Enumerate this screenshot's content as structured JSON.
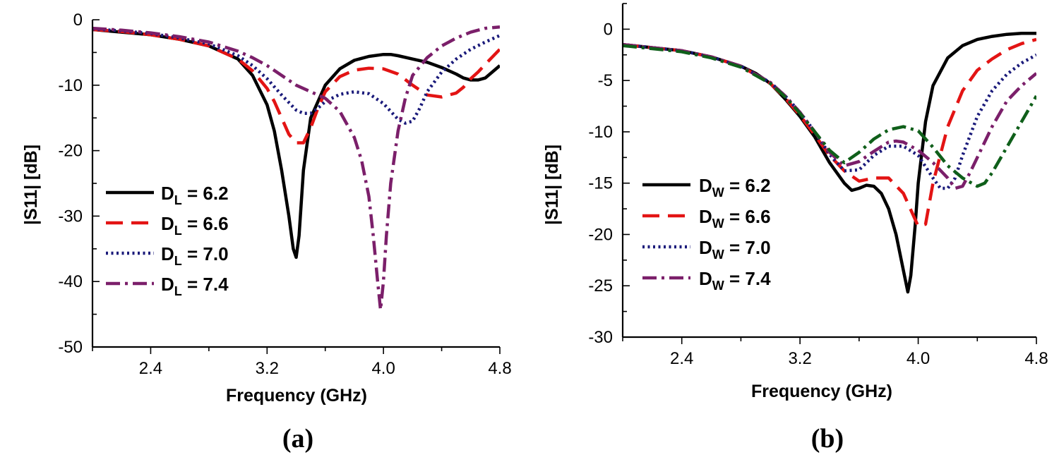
{
  "chart_data": [
    {
      "type": "line",
      "panel_label": "(a)",
      "xlabel": "Frequency (GHz)",
      "ylabel": "|S11| [dB]",
      "xlim": [
        2.0,
        4.8
      ],
      "ylim": [
        -50,
        0
      ],
      "xticks": [
        2.4,
        3.2,
        4.0,
        4.8
      ],
      "xtick_labels": [
        "2.4",
        "3.2",
        "4.0",
        "4.8"
      ],
      "yticks": [
        0,
        -10,
        -20,
        -30,
        -40,
        -50
      ],
      "ytick_labels": [
        "0",
        "-10",
        "-20",
        "-30",
        "-40",
        "-50"
      ],
      "legend_placement": "left-middle",
      "series": [
        {
          "name": "D_L = 6.2",
          "label_main": "D",
          "label_sub": "L",
          "label_value": " = 6.2",
          "color": "#000000",
          "dash": "solid",
          "x": [
            2.0,
            2.2,
            2.4,
            2.6,
            2.8,
            3.0,
            3.1,
            3.2,
            3.25,
            3.3,
            3.35,
            3.38,
            3.4,
            3.42,
            3.45,
            3.5,
            3.6,
            3.7,
            3.8,
            3.9,
            4.0,
            4.05,
            4.1,
            4.2,
            4.3,
            4.4,
            4.5,
            4.55,
            4.6,
            4.65,
            4.7,
            4.8
          ],
          "y": [
            -1.5,
            -1.9,
            -2.3,
            -3.0,
            -4.0,
            -6.0,
            -8.5,
            -13,
            -17,
            -23,
            -30,
            -35,
            -36.3,
            -33,
            -23,
            -15,
            -10,
            -7.5,
            -6.2,
            -5.6,
            -5.3,
            -5.3,
            -5.5,
            -6.0,
            -6.5,
            -7.3,
            -8.3,
            -8.9,
            -9.2,
            -9.2,
            -8.9,
            -7.0
          ]
        },
        {
          "name": "D_L = 6.6",
          "label_main": "D",
          "label_sub": "L",
          "label_value": " = 6.6",
          "color": "#e31414",
          "dash": "long-dash",
          "x": [
            2.0,
            2.2,
            2.4,
            2.6,
            2.8,
            3.0,
            3.1,
            3.2,
            3.25,
            3.3,
            3.35,
            3.4,
            3.45,
            3.5,
            3.55,
            3.6,
            3.7,
            3.8,
            3.9,
            4.0,
            4.1,
            4.2,
            4.3,
            4.4,
            4.5,
            4.55,
            4.6,
            4.65,
            4.7,
            4.8
          ],
          "y": [
            -1.5,
            -1.8,
            -2.3,
            -3.0,
            -4.0,
            -6.0,
            -7.8,
            -10.5,
            -12.5,
            -15,
            -17.5,
            -18.8,
            -18.8,
            -16.5,
            -13.5,
            -11,
            -8.7,
            -7.7,
            -7.4,
            -7.5,
            -8.3,
            -10,
            -11.5,
            -11.8,
            -11.2,
            -10.3,
            -9.0,
            -8.0,
            -6.8,
            -4.5
          ]
        },
        {
          "name": "D_L = 7.0",
          "label_main": "D",
          "label_sub": "L",
          "label_value": " = 7.0",
          "color": "#1a1a7a",
          "dash": "dot",
          "x": [
            2.0,
            2.2,
            2.4,
            2.6,
            2.8,
            3.0,
            3.1,
            3.2,
            3.3,
            3.4,
            3.45,
            3.5,
            3.55,
            3.6,
            3.7,
            3.8,
            3.9,
            4.0,
            4.05,
            4.1,
            4.15,
            4.2,
            4.25,
            4.3,
            4.4,
            4.5,
            4.6,
            4.7,
            4.8
          ],
          "y": [
            -1.4,
            -1.7,
            -2.1,
            -2.8,
            -3.7,
            -5.5,
            -7.0,
            -9.0,
            -11.5,
            -13.8,
            -14.3,
            -14.3,
            -13.5,
            -12.5,
            -11.4,
            -11.0,
            -11.3,
            -12.8,
            -14.0,
            -15.2,
            -15.8,
            -15.5,
            -13.5,
            -11,
            -8,
            -6,
            -4.5,
            -3.4,
            -2.4
          ]
        },
        {
          "name": "D_L = 7.4",
          "label_main": "D",
          "label_sub": "L",
          "label_value": " = 7.4",
          "color": "#7b1f6a",
          "dash": "dash-dot",
          "x": [
            2.0,
            2.2,
            2.4,
            2.6,
            2.8,
            3.0,
            3.1,
            3.2,
            3.3,
            3.4,
            3.5,
            3.6,
            3.7,
            3.8,
            3.85,
            3.9,
            3.93,
            3.96,
            3.98,
            4.0,
            4.02,
            4.05,
            4.1,
            4.15,
            4.2,
            4.3,
            4.4,
            4.5,
            4.6,
            4.7,
            4.8
          ],
          "y": [
            -1.3,
            -1.6,
            -2.0,
            -2.6,
            -3.4,
            -4.8,
            -5.8,
            -7.0,
            -8.5,
            -10.0,
            -11.0,
            -12.0,
            -14.0,
            -18.0,
            -21.5,
            -27,
            -33,
            -40,
            -44.3,
            -40,
            -33,
            -25,
            -17,
            -12,
            -8.5,
            -5.8,
            -4.0,
            -2.8,
            -1.9,
            -1.3,
            -1.1
          ]
        }
      ]
    },
    {
      "type": "line",
      "panel_label": "(b)",
      "xlabel": "Frequency (GHz)",
      "ylabel": "|S11| [dB]",
      "xlim": [
        2.0,
        4.8
      ],
      "ylim": [
        -30,
        2.5
      ],
      "xticks": [
        2.4,
        3.2,
        4.0,
        4.8
      ],
      "xtick_labels": [
        "2.4",
        "3.2",
        "4.0",
        "4.8"
      ],
      "yticks": [
        0,
        -5,
        -10,
        -15,
        -20,
        -25,
        -30
      ],
      "ytick_labels": [
        "0",
        "-5",
        "-10",
        "-15",
        "-20",
        "-25",
        "-30"
      ],
      "legend_placement": "left-middle",
      "series": [
        {
          "name": "D_W = 6.2",
          "label_main": "D",
          "label_sub": "W",
          "label_value": " = 6.2",
          "color": "#000000",
          "dash": "solid",
          "x": [
            2.0,
            2.2,
            2.4,
            2.6,
            2.8,
            2.9,
            3.0,
            3.1,
            3.2,
            3.3,
            3.4,
            3.5,
            3.55,
            3.6,
            3.65,
            3.7,
            3.75,
            3.8,
            3.85,
            3.9,
            3.93,
            3.95,
            3.98,
            4.0,
            4.05,
            4.1,
            4.2,
            4.3,
            4.4,
            4.5,
            4.6,
            4.7,
            4.8
          ],
          "y": [
            -1.5,
            -1.8,
            -2.1,
            -2.7,
            -3.6,
            -4.3,
            -5.3,
            -6.8,
            -8.5,
            -10.5,
            -13.0,
            -15.0,
            -15.7,
            -15.5,
            -15.2,
            -15.3,
            -16.0,
            -17.5,
            -20,
            -23.5,
            -25.6,
            -24,
            -19,
            -15,
            -9,
            -5.5,
            -2.8,
            -1.6,
            -1.0,
            -0.7,
            -0.5,
            -0.4,
            -0.4
          ]
        },
        {
          "name": "D_W = 6.6",
          "label_main": "D",
          "label_sub": "W",
          "label_value": " = 6.6",
          "color": "#e31414",
          "dash": "long-dash",
          "x": [
            2.0,
            2.2,
            2.4,
            2.6,
            2.8,
            3.0,
            3.1,
            3.2,
            3.3,
            3.4,
            3.5,
            3.6,
            3.7,
            3.8,
            3.9,
            4.0,
            4.05,
            4.1,
            4.2,
            4.3,
            4.4,
            4.5,
            4.6,
            4.7,
            4.8
          ],
          "y": [
            -1.5,
            -1.8,
            -2.1,
            -2.7,
            -3.6,
            -5.3,
            -6.7,
            -8.4,
            -10.3,
            -12.3,
            -13.8,
            -14.8,
            -14.5,
            -14.5,
            -16.0,
            -19.2,
            -19.0,
            -15,
            -9.5,
            -6.0,
            -4.0,
            -2.9,
            -2.0,
            -1.4,
            -1.0
          ]
        },
        {
          "name": "D_W = 7.0",
          "label_main": "D",
          "label_sub": "W",
          "label_value": " = 7.0",
          "color": "#1a1a7a",
          "dash": "dot",
          "x": [
            2.0,
            2.2,
            2.4,
            2.6,
            2.8,
            3.0,
            3.1,
            3.2,
            3.3,
            3.4,
            3.5,
            3.6,
            3.7,
            3.8,
            3.9,
            4.0,
            4.1,
            4.15,
            4.2,
            4.25,
            4.3,
            4.4,
            4.5,
            4.6,
            4.7,
            4.8
          ],
          "y": [
            -1.5,
            -1.8,
            -2.1,
            -2.7,
            -3.6,
            -5.2,
            -6.5,
            -8.1,
            -10.0,
            -12.2,
            -13.8,
            -13.7,
            -12.3,
            -11.4,
            -11.4,
            -12.3,
            -14.5,
            -15.5,
            -15.5,
            -14.5,
            -12.3,
            -8.5,
            -6.0,
            -4.4,
            -3.3,
            -2.5
          ]
        },
        {
          "name": "D_W = 7.4",
          "label_main": "D",
          "label_sub": "W",
          "label_value": " = 7.4",
          "color": "#7b1f6a",
          "dash": "dash-dot",
          "x": [
            2.0,
            2.2,
            2.4,
            2.6,
            2.8,
            3.0,
            3.1,
            3.2,
            3.3,
            3.4,
            3.5,
            3.6,
            3.7,
            3.8,
            3.85,
            3.9,
            4.0,
            4.1,
            4.2,
            4.25,
            4.3,
            4.35,
            4.4,
            4.5,
            4.6,
            4.7,
            4.8
          ],
          "y": [
            -1.5,
            -1.8,
            -2.1,
            -2.7,
            -3.6,
            -5.2,
            -6.5,
            -8.1,
            -10.0,
            -12.0,
            -13.3,
            -12.9,
            -11.9,
            -11.0,
            -10.9,
            -11.0,
            -11.8,
            -13.0,
            -14.5,
            -15.5,
            -15.3,
            -14.0,
            -12.5,
            -9.5,
            -7.0,
            -5.5,
            -4.3
          ]
        },
        {
          "name": "",
          "label_main": "",
          "label_sub": "",
          "label_value": "",
          "color": "#0f5f1a",
          "dash": "dash-dot",
          "x": [
            2.0,
            2.2,
            2.4,
            2.6,
            2.8,
            3.0,
            3.1,
            3.2,
            3.3,
            3.4,
            3.5,
            3.6,
            3.7,
            3.8,
            3.9,
            4.0,
            4.1,
            4.2,
            4.3,
            4.4,
            4.45,
            4.5,
            4.6,
            4.7,
            4.8
          ],
          "y": [
            -1.6,
            -1.9,
            -2.2,
            -2.8,
            -3.7,
            -5.3,
            -6.6,
            -8.2,
            -10.0,
            -11.8,
            -13.0,
            -12.0,
            -10.7,
            -9.8,
            -9.5,
            -9.9,
            -11.5,
            -13.3,
            -14.5,
            -15.3,
            -15.0,
            -14.0,
            -11.5,
            -9.0,
            -6.5
          ]
        }
      ]
    }
  ]
}
